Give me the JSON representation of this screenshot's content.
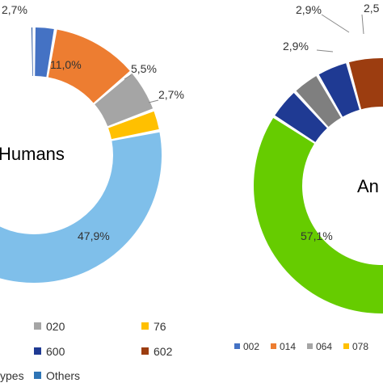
{
  "chart_data": [
    {
      "type": "donut",
      "title": "Humans",
      "slices": [
        {
          "label": "2,7%",
          "value": 2.7,
          "color": "#4472c4"
        },
        {
          "label": "11,0%",
          "value": 11.0,
          "color": "#ed7d31"
        },
        {
          "label": "5,5%",
          "value": 5.5,
          "color": "#a5a5a5"
        },
        {
          "label": "2,7%",
          "value": 2.7,
          "color": "#ffc000"
        },
        {
          "label": "47,9%",
          "value": 47.9,
          "color": "#7fbfea"
        },
        {
          "label": "",
          "value": 29.5,
          "color": "#ffffff"
        },
        {
          "label": "",
          "value": 0.5,
          "color": "#1f4e9c"
        }
      ],
      "legend": [
        {
          "label": "020",
          "color": "#a5a5a5"
        },
        {
          "label": "76",
          "color": "#ffc000"
        },
        {
          "label": "600",
          "color": "#1f3a93"
        },
        {
          "label": "602",
          "color": "#9c3d10"
        },
        {
          "label": "ypes",
          "color": ""
        },
        {
          "label": "Others",
          "color": "#2e75b6"
        }
      ]
    },
    {
      "type": "donut",
      "title": "An",
      "slices": [
        {
          "label": "2,9%",
          "value": 2.9,
          "color": "#1f3a93"
        },
        {
          "label": "",
          "value": 3.8,
          "color": "#9c3d10"
        },
        {
          "label": "",
          "value": 2.3,
          "color": "#7f7f7f"
        },
        {
          "label": "57,1%",
          "value": 57.1,
          "color": "#66cc00"
        },
        {
          "label": "2,9%",
          "value": 2.9,
          "color": "#1f3a93"
        },
        {
          "label": "2,5",
          "value": 2.5,
          "color": "#7f7f7f"
        }
      ],
      "legend": [
        {
          "label": "002",
          "color": "#4472c4"
        },
        {
          "label": "014",
          "color": "#ed7d31"
        },
        {
          "label": "064",
          "color": "#a5a5a5"
        },
        {
          "label": "078",
          "color": "#ffc000"
        }
      ]
    }
  ]
}
